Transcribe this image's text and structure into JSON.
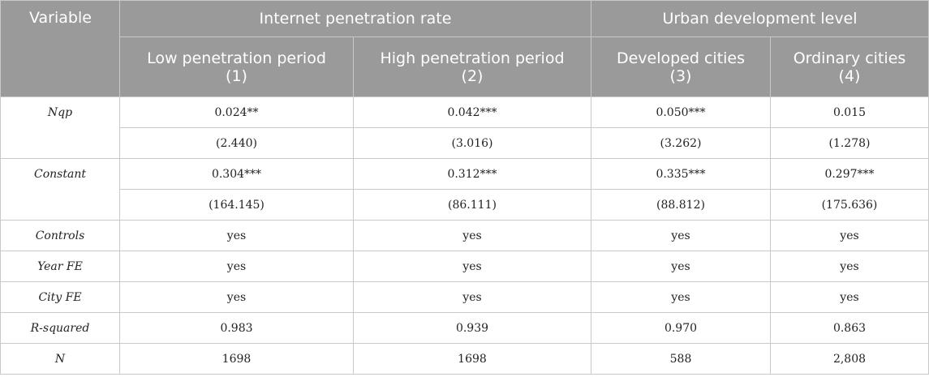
{
  "header": {
    "variable": "Variable",
    "group1": "Internet penetration rate",
    "group2": "Urban development level",
    "columns": [
      {
        "title": "Low penetration period",
        "num": "(1)"
      },
      {
        "title": "High penetration period",
        "num": "(2)"
      },
      {
        "title": "Developed cities",
        "num": "(3)"
      },
      {
        "title": "Ordinary cities",
        "num": "(4)"
      }
    ]
  },
  "rows": {
    "nqp": {
      "label": "Nqp",
      "coef": [
        "0.024**",
        "0.042***",
        "0.050***",
        "0.015"
      ],
      "t": [
        "(2.440)",
        "(3.016)",
        "(3.262)",
        "(1.278)"
      ]
    },
    "constant": {
      "label": "Constant",
      "coef": [
        "0.304***",
        "0.312***",
        "0.335***",
        "0.297***"
      ],
      "t": [
        "(164.145)",
        "(86.111)",
        "(88.812)",
        "(175.636)"
      ]
    },
    "controls": {
      "label": "Controls",
      "values": [
        "yes",
        "yes",
        "yes",
        "yes"
      ]
    },
    "year_fe": {
      "label": "Year FE",
      "values": [
        "yes",
        "yes",
        "yes",
        "yes"
      ]
    },
    "city_fe": {
      "label": "City FE",
      "values": [
        "yes",
        "yes",
        "yes",
        "yes"
      ]
    },
    "r_squared": {
      "label": "R-squared",
      "values": [
        "0.983",
        "0.939",
        "0.970",
        "0.863"
      ]
    },
    "n": {
      "label": "N",
      "values": [
        "1698",
        "1698",
        "588",
        "2,808"
      ]
    }
  }
}
